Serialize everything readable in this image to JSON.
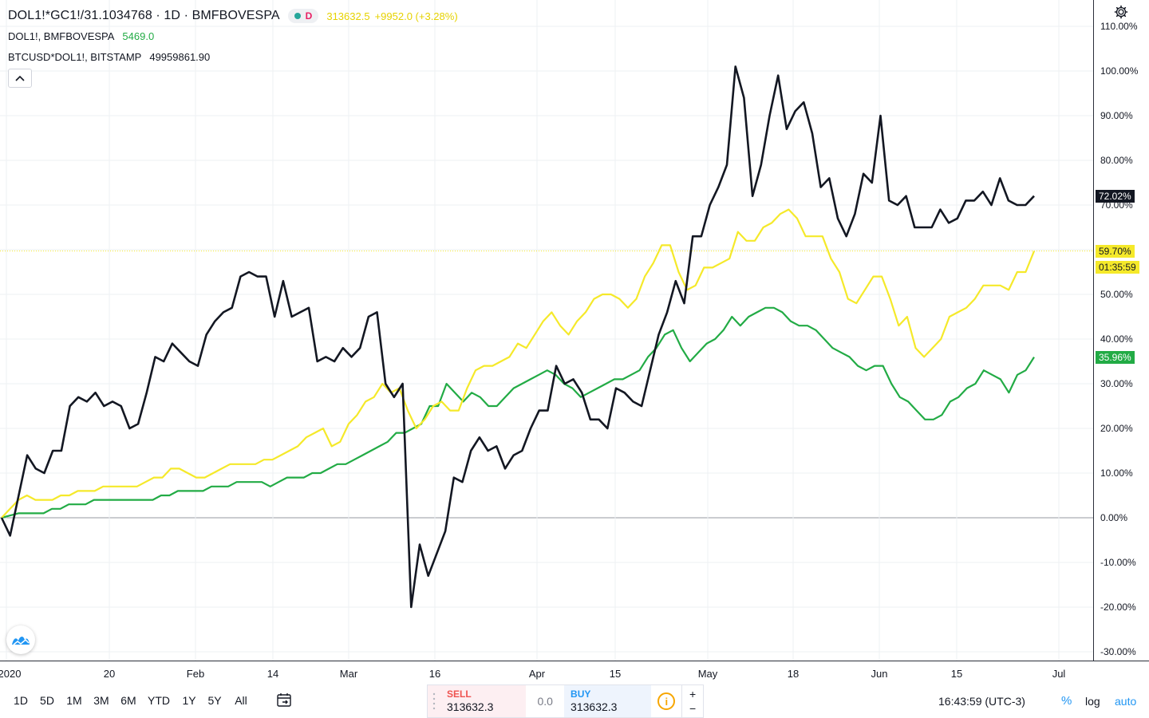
{
  "header": {
    "main_symbol": "DOL1!*GC1!/31.1034768",
    "interval": "1D",
    "exchange": "BMFBOVESPA",
    "interval_badge": "D",
    "last_price": "313632.5",
    "change": "+9952.0 (+3.28%)",
    "comparisons": [
      {
        "label": "DOL1!, BMFBOVESPA",
        "value": "5469.0"
      },
      {
        "label": "BTCUSD*DOL1!, BITSTAMP",
        "value": "49959861.90"
      }
    ]
  },
  "price_axis": {
    "ticks": [
      "110.00%",
      "100.00%",
      "90.00%",
      "80.00%",
      "70.00%",
      "60.00%",
      "50.00%",
      "40.00%",
      "30.00%",
      "20.00%",
      "10.00%",
      "0.00%",
      "-10.00%",
      "-20.00%",
      "-30.00%"
    ],
    "labels": {
      "black": "72.02%",
      "yellow": "59.70%",
      "countdown": "01:35:59",
      "green": "35.96%"
    }
  },
  "time_axis": {
    "labels": [
      "2020",
      "20",
      "Feb",
      "14",
      "Mar",
      "16",
      "Apr",
      "15",
      "May",
      "18",
      "Jun",
      "15",
      "Jul"
    ]
  },
  "range_buttons": [
    "1D",
    "5D",
    "1M",
    "3M",
    "6M",
    "YTD",
    "1Y",
    "5Y",
    "All"
  ],
  "trade": {
    "sell_label": "SELL",
    "sell_price": "313632.3",
    "spread": "0.0",
    "buy_label": "BUY",
    "buy_price": "313632.3",
    "info_symbol": "i",
    "plus": "+",
    "minus": "−"
  },
  "status": {
    "time": "16:43:59 (UTC-3)",
    "percent_label": "%",
    "log_label": "log",
    "auto_label": "auto"
  },
  "colors": {
    "black_series": "#131722",
    "yellow_series": "#f5e92a",
    "green_series": "#22ab45",
    "grid": "#e8ebf0",
    "accent": "#2196f3"
  },
  "chart_data": {
    "type": "line",
    "y_unit": "%",
    "ylim": [
      -32,
      116
    ],
    "x_start": "2020-01-02",
    "x_end": "2020-06-29",
    "grid": true,
    "series": [
      {
        "color": "#131722",
        "values": [
          0,
          -4,
          5,
          14,
          11,
          10,
          15,
          15,
          25,
          27,
          26,
          28,
          25,
          26,
          25,
          20,
          21,
          28,
          36,
          35,
          39,
          37,
          35,
          34,
          41,
          44,
          46,
          47,
          54,
          55,
          54,
          54,
          45,
          53,
          45,
          46,
          47,
          35,
          36,
          35,
          38,
          36,
          38,
          45,
          46,
          30,
          27,
          30,
          -20,
          -6,
          -13,
          -8,
          -3,
          9,
          8,
          15,
          18,
          15,
          16,
          11,
          14,
          15,
          20,
          24,
          24,
          34,
          30,
          31,
          28,
          22,
          22,
          20,
          29,
          28,
          26,
          25,
          33,
          41,
          46,
          53,
          48,
          63,
          63,
          70,
          74,
          79,
          101,
          94,
          72,
          79,
          90,
          99,
          87,
          91,
          93,
          86,
          74,
          76,
          67,
          63,
          68,
          77,
          75,
          90,
          71,
          70,
          72,
          65,
          65,
          65,
          69,
          66,
          67,
          71,
          71,
          73,
          70,
          76,
          71,
          70,
          70,
          72.02
        ]
      },
      {
        "color": "#f5e92a",
        "values": [
          0,
          2,
          4,
          5,
          4,
          4,
          4,
          5,
          5,
          6,
          6,
          6,
          7,
          7,
          7,
          7,
          7,
          8,
          9,
          9,
          11,
          11,
          10,
          9,
          9,
          10,
          11,
          12,
          12,
          12,
          12,
          13,
          13,
          14,
          15,
          16,
          18,
          19,
          20,
          16,
          17,
          21,
          23,
          26,
          27,
          30,
          28,
          29,
          24,
          20,
          22,
          25,
          26,
          24,
          24,
          29,
          33,
          34,
          34,
          35,
          36,
          39,
          38,
          41,
          44,
          46,
          43,
          41,
          44,
          46,
          49,
          50,
          50,
          49,
          47,
          49,
          54,
          57,
          61,
          61,
          55,
          51,
          52,
          56,
          56,
          57,
          58,
          64,
          62,
          62,
          65,
          66,
          68,
          69,
          67,
          63,
          63,
          63,
          58,
          55,
          49,
          48,
          51,
          54,
          54,
          49,
          43,
          45,
          38,
          36,
          38,
          40,
          45,
          46,
          47,
          49,
          52,
          52,
          52,
          51,
          55,
          55,
          59.7
        ]
      },
      {
        "color": "#22ab45",
        "values": [
          0,
          0.5,
          1,
          1,
          1,
          1,
          2,
          2,
          3,
          3,
          3,
          4,
          4,
          4,
          4,
          4,
          4,
          4,
          4,
          5,
          5,
          6,
          6,
          6,
          6,
          7,
          7,
          7,
          8,
          8,
          8,
          8,
          7,
          8,
          9,
          9,
          9,
          10,
          10,
          11,
          12,
          12,
          13,
          14,
          15,
          16,
          17,
          19,
          19,
          20,
          21,
          25,
          25,
          30,
          28,
          26,
          28,
          27,
          25,
          25,
          27,
          29,
          30,
          31,
          32,
          33,
          32,
          30,
          29,
          27,
          28,
          29,
          30,
          31,
          31,
          32,
          33,
          36,
          38,
          41,
          42,
          38,
          35,
          37,
          39,
          40,
          42,
          45,
          43,
          45,
          46,
          47,
          47,
          46,
          44,
          43,
          43,
          42,
          40,
          38,
          37,
          36,
          34,
          33,
          34,
          34,
          30,
          27,
          26,
          24,
          22,
          22,
          23,
          26,
          27,
          29,
          30,
          33,
          32,
          31,
          28,
          32,
          33,
          35.96
        ]
      }
    ]
  }
}
